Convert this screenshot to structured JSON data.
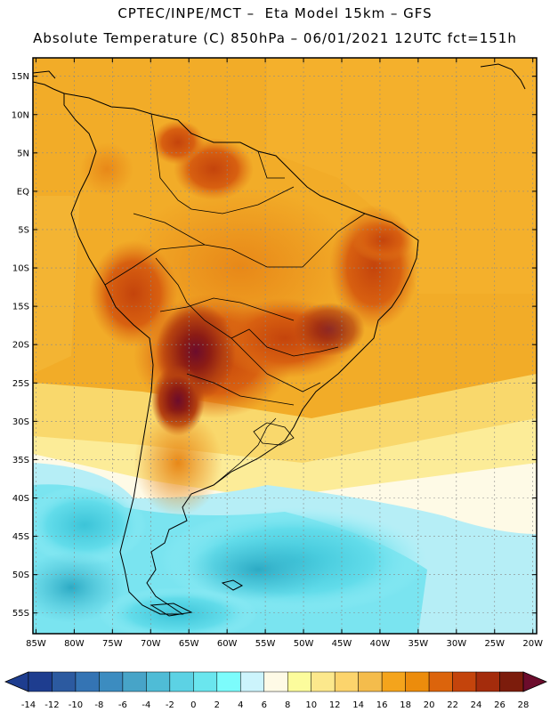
{
  "header": {
    "line1": "CPTEC/INPE/MCT –  Eta Model 15km – GFS",
    "line2": "Absolute Temperature (C) 850hPa – 06/01/2021 12UTC fct=151h"
  },
  "map": {
    "lat_labels": [
      "15N",
      "10N",
      "5N",
      "EQ",
      "5S",
      "10S",
      "15S",
      "20S",
      "25S",
      "30S",
      "35S",
      "40S",
      "45S",
      "50S",
      "55S"
    ],
    "lon_labels": [
      "85W",
      "80W",
      "75W",
      "70W",
      "65W",
      "60W",
      "55W",
      "50W",
      "45W",
      "40W",
      "35W",
      "30W",
      "25W",
      "20W"
    ],
    "lat_range": [
      15,
      -55
    ],
    "lon_range": [
      -85,
      -20
    ]
  },
  "colorbar": {
    "ticks": [
      "-14",
      "-12",
      "-10",
      "-8",
      "-6",
      "-4",
      "-2",
      "0",
      "2",
      "4",
      "6",
      "8",
      "10",
      "12",
      "14",
      "16",
      "18",
      "20",
      "22",
      "24",
      "26",
      "28"
    ],
    "colors": [
      "#1e3d8f",
      "#2c5aa0",
      "#3474b4",
      "#3c8cc0",
      "#47a4c8",
      "#4fbcd6",
      "#5cd2e4",
      "#6ae6ee",
      "#7cfcfc",
      "#ccf4fc",
      "#fefae6",
      "#fcfc9c",
      "#fce88c",
      "#fcd46c",
      "#f4bc4c",
      "#f4a41c",
      "#ec8c0c",
      "#dc640c",
      "#c4440c",
      "#a42c0c",
      "#7c1c0c"
    ],
    "low_color": "#1e3d8f",
    "high_color": "#6c0c2c"
  }
}
